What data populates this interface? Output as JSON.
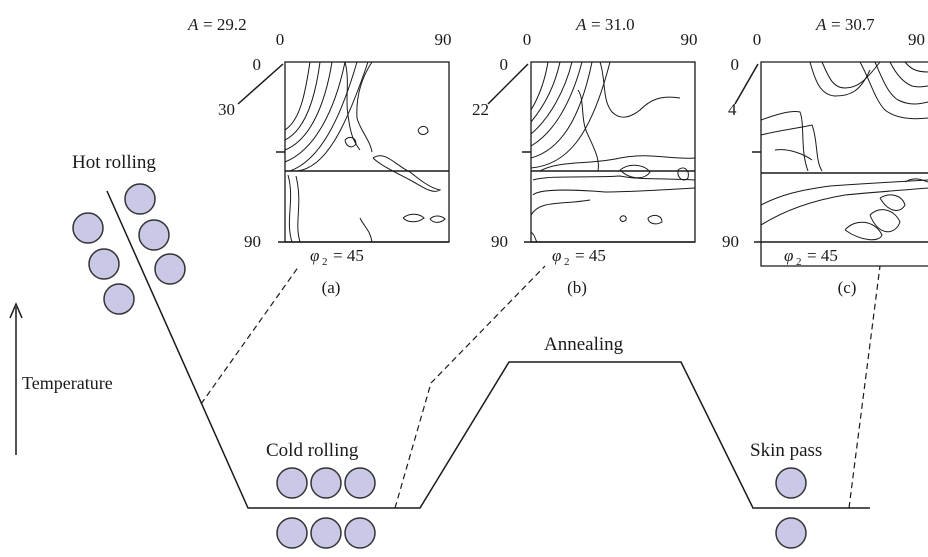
{
  "process": {
    "hot_rolling": "Hot rolling",
    "cold_rolling": "Cold rolling",
    "annealing": "Annealing",
    "skin_pass": "Skin pass",
    "axis_label": "Temperature"
  },
  "odf_panels": [
    {
      "id": "a",
      "a_prefix": "A",
      "a_value": "29.2",
      "x_min": "0",
      "x_max": "90",
      "y_min": "0",
      "y_max": "90",
      "side_value": "30",
      "phi_label": "φ",
      "phi_sub": "2",
      "phi_value": "= 45",
      "caption": "(a)"
    },
    {
      "id": "b",
      "a_prefix": "A",
      "a_value": "31.0",
      "x_min": "0",
      "x_max": "90",
      "y_min": "0",
      "y_max": "90",
      "side_value": "22",
      "phi_label": "φ",
      "phi_sub": "2",
      "phi_value": "= 45",
      "caption": "(b)"
    },
    {
      "id": "c",
      "a_prefix": "A",
      "a_value": "30.7",
      "x_min": "0",
      "x_max": "90",
      "y_min": "0",
      "y_max": "90",
      "side_value": "4",
      "phi_label": "φ",
      "phi_sub": "2",
      "phi_value": "= 45",
      "caption": "(c)"
    }
  ],
  "colors": {
    "roll_fill": "#c9c8e6",
    "line": "#1a1a1a"
  }
}
